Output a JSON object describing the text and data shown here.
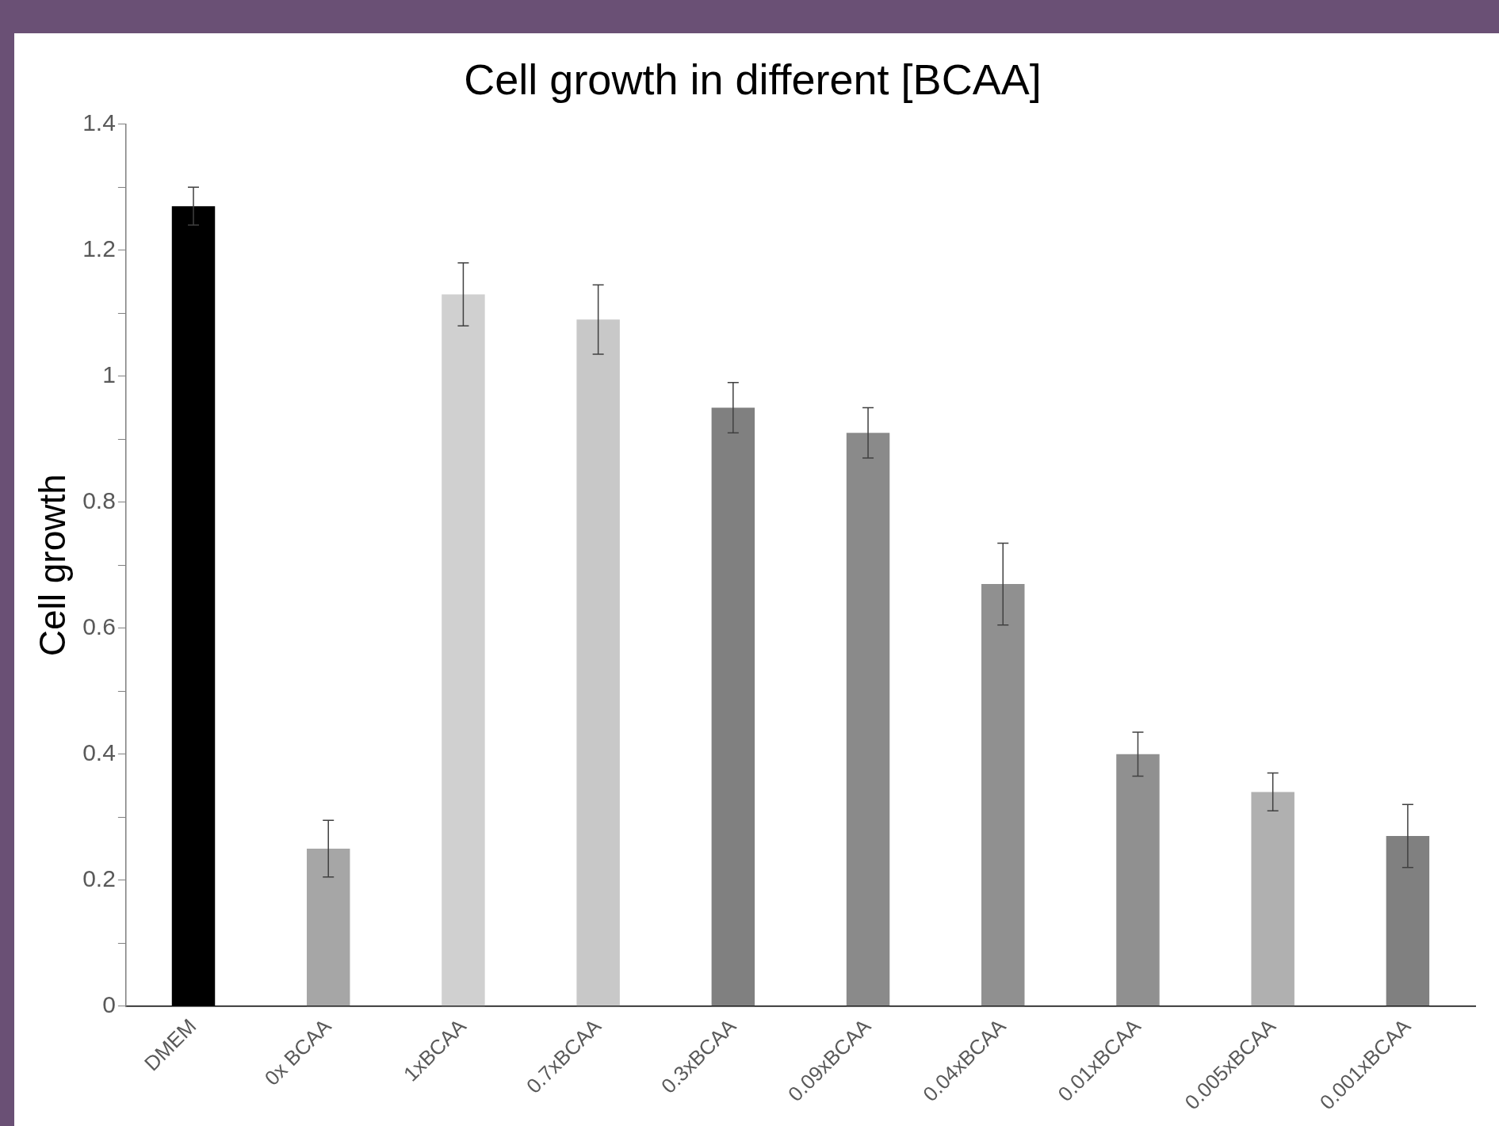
{
  "chart_data": {
    "type": "bar",
    "title": "Cell growth in different [BCAA]",
    "ylabel": "Cell growth",
    "categories": [
      "DMEM",
      "0x BCAA",
      "1xBCAA",
      "0.7xBCAA",
      "0.3xBCAA",
      "0.09xBCAA",
      "0.04xBCAA",
      "0.01xBCAA",
      "0.005xBCAA",
      "0.001xBCAA"
    ],
    "values": [
      1.27,
      0.25,
      1.13,
      1.09,
      0.95,
      0.91,
      0.67,
      0.4,
      0.34,
      0.27
    ],
    "errors": [
      0.03,
      0.045,
      0.05,
      0.055,
      0.04,
      0.04,
      0.065,
      0.035,
      0.03,
      0.05
    ],
    "colors": [
      "#000000",
      "#a6a6a6",
      "#d0d0d0",
      "#c8c8c8",
      "#808080",
      "#8a8a8a",
      "#909090",
      "#909090",
      "#b0b0b0",
      "#808080"
    ],
    "ylim": [
      0,
      1.4
    ],
    "yticks": [
      0,
      {
        "value": 0.1,
        "label": null
      },
      0.2,
      {
        "value": 0.3,
        "label": null
      },
      0.4,
      {
        "value": 0.5,
        "label": null
      },
      0.6,
      {
        "value": 0.7,
        "label": null
      },
      0.8,
      {
        "value": 0.9,
        "label": null
      },
      1,
      {
        "value": 1.1,
        "label": null
      },
      1.2,
      {
        "value": 1.3,
        "label": null
      },
      1.4
    ],
    "grid": false,
    "legend": false
  }
}
